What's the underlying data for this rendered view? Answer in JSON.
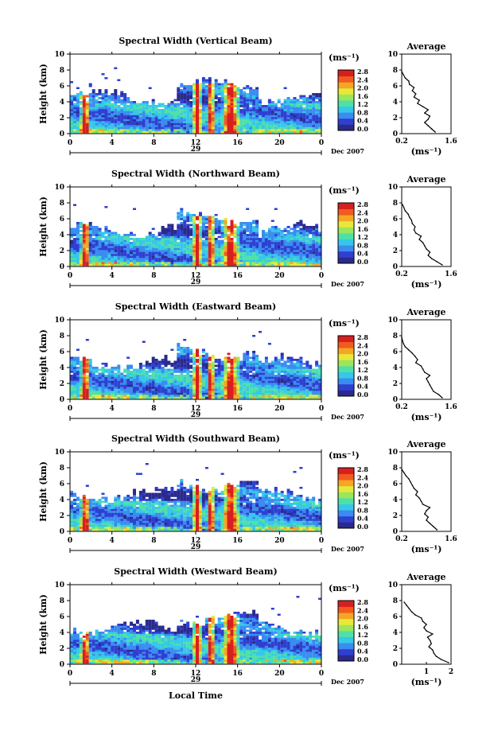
{
  "figure": {
    "xlabel": "Local Time",
    "date_label": "Dec 2007",
    "day_label": "29",
    "average_title": "Average",
    "units": "(ms⁻¹)",
    "colormap": [
      "#2a2a8c",
      "#2f3fd0",
      "#3a8cf0",
      "#35c8e8",
      "#4fe0a8",
      "#9be65a",
      "#e8e83a",
      "#f5a623",
      "#f25a1f",
      "#d62020"
    ]
  },
  "chart_data": [
    {
      "type": "heatmap",
      "title": "Spectral Width (Vertical Beam)",
      "xlabel": "",
      "ylabel": "Height (km)",
      "xlim": [
        0,
        24
      ],
      "ylim": [
        0,
        10
      ],
      "xticks": [
        "0",
        "4",
        "8",
        "12",
        "16",
        "20",
        "0"
      ],
      "yticks": [
        "0",
        "2",
        "4",
        "6",
        "8",
        "10"
      ],
      "colorbar": {
        "ticks": [
          "2.8",
          "2.4",
          "2.0",
          "1.6",
          "1.2",
          "0.8",
          "0.4",
          "0.0"
        ],
        "range": [
          0,
          2.8
        ]
      },
      "average": {
        "xlim": [
          0.2,
          1.6
        ],
        "xticks": [
          "0.2",
          "1.6"
        ],
        "xlabel": "(ms⁻¹)",
        "profile": [
          [
            1.15,
            0.2
          ],
          [
            1.05,
            0.6
          ],
          [
            0.95,
            1.0
          ],
          [
            0.85,
            1.4
          ],
          [
            0.95,
            1.8
          ],
          [
            1.0,
            2.2
          ],
          [
            0.85,
            2.6
          ],
          [
            0.95,
            3.0
          ],
          [
            0.8,
            3.4
          ],
          [
            0.65,
            3.8
          ],
          [
            0.7,
            4.2
          ],
          [
            0.55,
            4.6
          ],
          [
            0.6,
            5.0
          ],
          [
            0.5,
            5.4
          ],
          [
            0.55,
            5.8
          ],
          [
            0.42,
            6.2
          ],
          [
            0.4,
            6.6
          ],
          [
            0.3,
            7.0
          ],
          [
            0.25,
            7.4
          ],
          [
            0.2,
            7.8
          ]
        ]
      }
    },
    {
      "type": "heatmap",
      "title": "Spectral Width (Northward Beam)",
      "xlabel": "",
      "ylabel": "Height (km)",
      "xlim": [
        0,
        24
      ],
      "ylim": [
        0,
        10
      ],
      "xticks": [
        "0",
        "4",
        "8",
        "12",
        "16",
        "20",
        "0"
      ],
      "yticks": [
        "0",
        "2",
        "4",
        "6",
        "8",
        "10"
      ],
      "colorbar": {
        "ticks": [
          "2.8",
          "2.4",
          "2.0",
          "1.6",
          "1.2",
          "0.8",
          "0.4",
          "0.0"
        ],
        "range": [
          0,
          2.8
        ]
      },
      "average": {
        "xlim": [
          0.2,
          1.6
        ],
        "xticks": [
          "0.2",
          "1.6"
        ],
        "xlabel": "(ms⁻¹)",
        "profile": [
          [
            1.35,
            0.2
          ],
          [
            1.2,
            0.6
          ],
          [
            1.05,
            1.0
          ],
          [
            0.95,
            1.4
          ],
          [
            1.0,
            1.8
          ],
          [
            0.9,
            2.2
          ],
          [
            0.85,
            2.6
          ],
          [
            0.8,
            3.0
          ],
          [
            0.7,
            3.4
          ],
          [
            0.75,
            3.8
          ],
          [
            0.6,
            4.2
          ],
          [
            0.55,
            4.6
          ],
          [
            0.58,
            5.0
          ],
          [
            0.5,
            5.4
          ],
          [
            0.48,
            5.8
          ],
          [
            0.42,
            6.2
          ],
          [
            0.38,
            6.6
          ],
          [
            0.3,
            7.0
          ],
          [
            0.26,
            7.4
          ],
          [
            0.22,
            7.8
          ]
        ]
      }
    },
    {
      "type": "heatmap",
      "title": "Spectral Width (Eastward Beam)",
      "xlabel": "",
      "ylabel": "Height (km)",
      "xlim": [
        0,
        24
      ],
      "ylim": [
        0,
        10
      ],
      "xticks": [
        "0",
        "4",
        "8",
        "12",
        "16",
        "20",
        "0"
      ],
      "yticks": [
        "0",
        "2",
        "4",
        "6",
        "8",
        "10"
      ],
      "colorbar": {
        "ticks": [
          "2.8",
          "2.4",
          "2.0",
          "1.6",
          "1.2",
          "0.8",
          "0.4",
          "0.0"
        ],
        "range": [
          0,
          2.8
        ]
      },
      "average": {
        "xlim": [
          0.2,
          1.6
        ],
        "xticks": [
          "0.2",
          "1.6"
        ],
        "xlabel": "(ms⁻¹)",
        "profile": [
          [
            1.35,
            0.2
          ],
          [
            1.25,
            0.6
          ],
          [
            1.1,
            1.0
          ],
          [
            1.05,
            1.4
          ],
          [
            1.0,
            1.8
          ],
          [
            0.95,
            2.2
          ],
          [
            0.9,
            2.6
          ],
          [
            1.0,
            3.0
          ],
          [
            0.85,
            3.4
          ],
          [
            0.8,
            3.8
          ],
          [
            0.75,
            4.2
          ],
          [
            0.6,
            4.6
          ],
          [
            0.65,
            5.0
          ],
          [
            0.58,
            5.4
          ],
          [
            0.5,
            5.8
          ],
          [
            0.4,
            6.2
          ],
          [
            0.3,
            6.6
          ],
          [
            0.25,
            7.0
          ],
          [
            0.22,
            7.4
          ],
          [
            0.2,
            7.8
          ]
        ]
      }
    },
    {
      "type": "heatmap",
      "title": "Spectral Width (Southward Beam)",
      "xlabel": "",
      "ylabel": "Height (km)",
      "xlim": [
        0,
        24
      ],
      "ylim": [
        0,
        10
      ],
      "xticks": [
        "0",
        "4",
        "8",
        "12",
        "16",
        "20",
        "0"
      ],
      "yticks": [
        "0",
        "2",
        "4",
        "6",
        "8",
        "10"
      ],
      "colorbar": {
        "ticks": [
          "2.8",
          "2.4",
          "2.0",
          "1.6",
          "1.2",
          "0.8",
          "0.4",
          "0.0"
        ],
        "range": [
          0,
          2.8
        ]
      },
      "average": {
        "xlim": [
          0.2,
          1.6
        ],
        "xticks": [
          "0.2",
          "1.6"
        ],
        "xlabel": "(ms⁻¹)",
        "profile": [
          [
            1.2,
            0.2
          ],
          [
            1.1,
            0.6
          ],
          [
            1.0,
            1.0
          ],
          [
            0.9,
            1.4
          ],
          [
            0.95,
            1.8
          ],
          [
            0.85,
            2.2
          ],
          [
            0.9,
            2.6
          ],
          [
            1.0,
            3.0
          ],
          [
            0.8,
            3.4
          ],
          [
            0.75,
            3.8
          ],
          [
            0.7,
            4.2
          ],
          [
            0.6,
            4.6
          ],
          [
            0.65,
            5.0
          ],
          [
            0.55,
            5.4
          ],
          [
            0.5,
            5.8
          ],
          [
            0.45,
            6.2
          ],
          [
            0.4,
            6.6
          ],
          [
            0.32,
            7.0
          ],
          [
            0.26,
            7.4
          ],
          [
            0.2,
            7.8
          ]
        ]
      }
    },
    {
      "type": "heatmap",
      "title": "Spectral Width (Westward Beam)",
      "xlabel": "Local Time",
      "ylabel": "Height (km)",
      "xlim": [
        0,
        24
      ],
      "ylim": [
        0,
        10
      ],
      "xticks": [
        "0",
        "4",
        "8",
        "12",
        "16",
        "20",
        "0"
      ],
      "yticks": [
        "0",
        "2",
        "4",
        "6",
        "8",
        "10"
      ],
      "colorbar": {
        "ticks": [
          "2.8",
          "2.4",
          "2.0",
          "1.6",
          "1.2",
          "0.8",
          "0.4",
          "0.0"
        ],
        "range": [
          0,
          2.8
        ]
      },
      "average": {
        "xlim": [
          0,
          2
        ],
        "xticks": [
          "1",
          "2"
        ],
        "xlabel": "(ms⁻¹)",
        "profile": [
          [
            1.9,
            0.2
          ],
          [
            1.6,
            0.6
          ],
          [
            1.4,
            1.0
          ],
          [
            1.3,
            1.4
          ],
          [
            1.25,
            1.8
          ],
          [
            1.1,
            2.2
          ],
          [
            1.2,
            2.6
          ],
          [
            1.15,
            3.0
          ],
          [
            1.05,
            3.4
          ],
          [
            1.25,
            3.8
          ],
          [
            1.0,
            4.2
          ],
          [
            0.9,
            4.6
          ],
          [
            1.0,
            5.0
          ],
          [
            0.85,
            5.4
          ],
          [
            0.8,
            5.8
          ],
          [
            0.55,
            6.2
          ],
          [
            0.4,
            6.6
          ],
          [
            0.3,
            7.0
          ],
          [
            0.2,
            7.4
          ],
          [
            0.1,
            7.8
          ]
        ]
      }
    }
  ]
}
